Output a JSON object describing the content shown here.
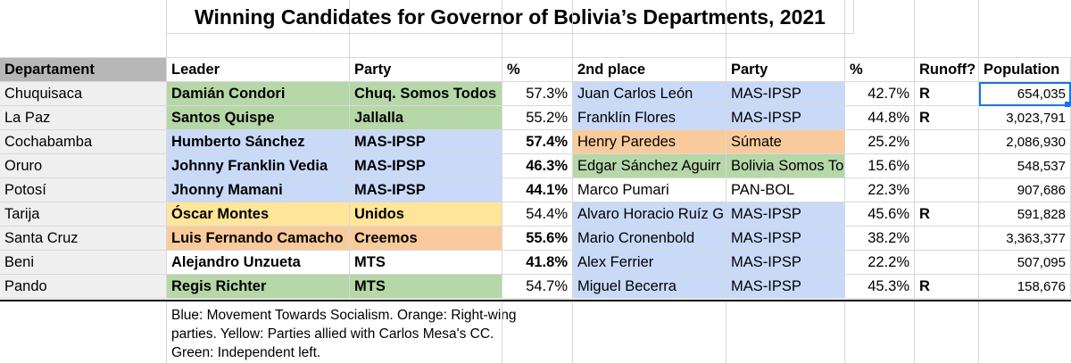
{
  "title": "Winning Candidates for Governor of Bolivia’s Departments, 2021",
  "headers": [
    "Departament",
    "Leader",
    "Party",
    "%",
    "2nd place",
    "Party",
    "%",
    "Runoff?",
    "Population"
  ],
  "rows": [
    {
      "dept": "Chuquisaca",
      "leader": "Damián Condori",
      "party": "Chuq. Somos Todos",
      "pct": "57.3%",
      "second": "Juan Carlos León",
      "party2": "MAS-IPSP",
      "pct2": "42.7%",
      "runoff": "R",
      "population": "654,035",
      "c1": "green",
      "c2": "blue",
      "bold_pct": false
    },
    {
      "dept": "La Paz",
      "leader": "Santos Quispe",
      "party": "Jallalla",
      "pct": "55.2%",
      "second": "Franklín Flores",
      "party2": "MAS-IPSP",
      "pct2": "44.8%",
      "runoff": "R",
      "population": "3,023,791",
      "c1": "green",
      "c2": "blue",
      "bold_pct": false
    },
    {
      "dept": "Cochabamba",
      "leader": "Humberto Sánchez",
      "party": "MAS-IPSP",
      "pct": "57.4%",
      "second": "Henry Paredes",
      "party2": "Súmate",
      "pct2": "25.2%",
      "runoff": "",
      "population": "2,086,930",
      "c1": "blue",
      "c2": "orange",
      "bold_pct": true
    },
    {
      "dept": "Oruro",
      "leader": "Johnny Franklin Vedia",
      "party": "MAS-IPSP",
      "pct": "46.3%",
      "second": "Edgar Sánchez Aguirr",
      "party2": "Bolivia Somos To",
      "pct2": "15.6%",
      "runoff": "",
      "population": "548,537",
      "c1": "blue",
      "c2": "green",
      "bold_pct": true
    },
    {
      "dept": "Potosí",
      "leader": "Jhonny Mamani",
      "party": "MAS-IPSP",
      "pct": "44.1%",
      "second": "Marco Pumari",
      "party2": "PAN-BOL",
      "pct2": "22.3%",
      "runoff": "",
      "population": "907,686",
      "c1": "blue",
      "c2": "none",
      "bold_pct": true
    },
    {
      "dept": "Tarija",
      "leader": "Óscar Montes",
      "party": "Unidos",
      "pct": "54.4%",
      "second": "Alvaro Horacio Ruíz G",
      "party2": "MAS-IPSP",
      "pct2": "45.6%",
      "runoff": "R",
      "population": "591,828",
      "c1": "yellow",
      "c2": "blue",
      "bold_pct": false
    },
    {
      "dept": "Santa Cruz",
      "leader": "Luis Fernando Camacho",
      "party": "Creemos",
      "pct": "55.6%",
      "second": "Mario Cronenbold",
      "party2": "MAS-IPSP",
      "pct2": "38.2%",
      "runoff": "",
      "population": "3,363,377",
      "c1": "orange",
      "c2": "blue",
      "bold_pct": true
    },
    {
      "dept": "Beni",
      "leader": "Alejandro Unzueta",
      "party": "MTS",
      "pct": "41.8%",
      "second": "Alex Ferrier",
      "party2": "MAS-IPSP",
      "pct2": "22.2%",
      "runoff": "",
      "population": "507,095",
      "c1": "none",
      "c2": "blue",
      "bold_pct": true
    },
    {
      "dept": "Pando",
      "leader": "Regis Richter",
      "party": "MTS",
      "pct": "54.7%",
      "second": "Miguel Becerra",
      "party2": "MAS-IPSP",
      "pct2": "45.3%",
      "runoff": "R",
      "population": "158,676",
      "c1": "green",
      "c2": "blue",
      "bold_pct": false
    }
  ],
  "legend_note": "Blue: Movement Towards Socialism. Orange: Right-wing parties. Yellow: Parties allied with Carlos Mesa's CC. Green: Independent left.",
  "colors": {
    "blue": "#c9daf8",
    "green": "#b6d7a8",
    "orange": "#f9cb9c",
    "yellow": "#ffe599"
  }
}
